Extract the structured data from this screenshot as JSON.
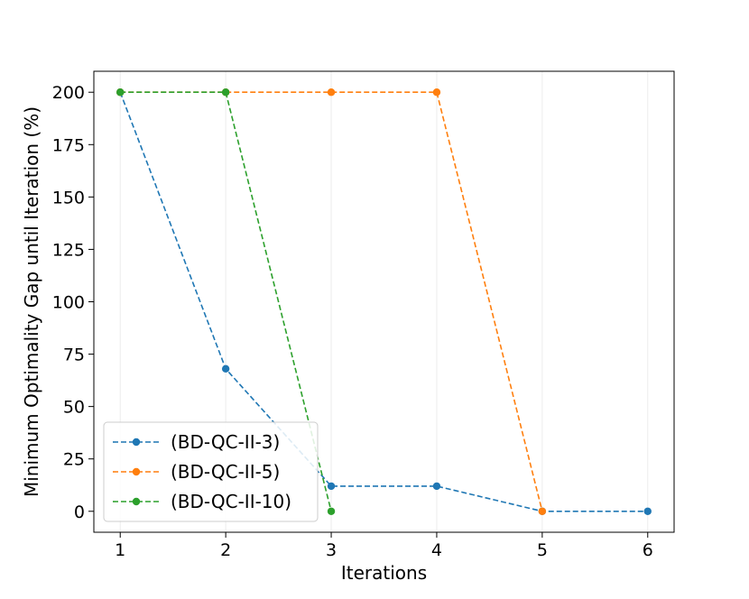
{
  "chart_data": {
    "type": "line",
    "title": "",
    "xlabel": "Iterations",
    "ylabel": "Minimum Optimality Gap until Iteration (%)",
    "xlim": [
      0.75,
      6.25
    ],
    "ylim": [
      -10,
      210
    ],
    "xticks": [
      1,
      2,
      3,
      4,
      5,
      6
    ],
    "yticks": [
      0,
      25,
      50,
      75,
      100,
      125,
      150,
      175,
      200
    ],
    "grid": "vertical",
    "legend_position": "lower-left",
    "series": [
      {
        "name": "(BD-QC-II-3)",
        "color": "#1f77b4",
        "x": [
          1,
          2,
          3,
          4,
          5,
          6
        ],
        "y": [
          200,
          68,
          12,
          12,
          0,
          0
        ]
      },
      {
        "name": "(BD-QC-II-5)",
        "color": "#ff7f0e",
        "x": [
          1,
          2,
          3,
          4,
          5
        ],
        "y": [
          200,
          200,
          200,
          200,
          0
        ]
      },
      {
        "name": "(BD-QC-II-10)",
        "color": "#2ca02c",
        "x": [
          1,
          2,
          3
        ],
        "y": [
          200,
          200,
          0
        ]
      }
    ]
  }
}
